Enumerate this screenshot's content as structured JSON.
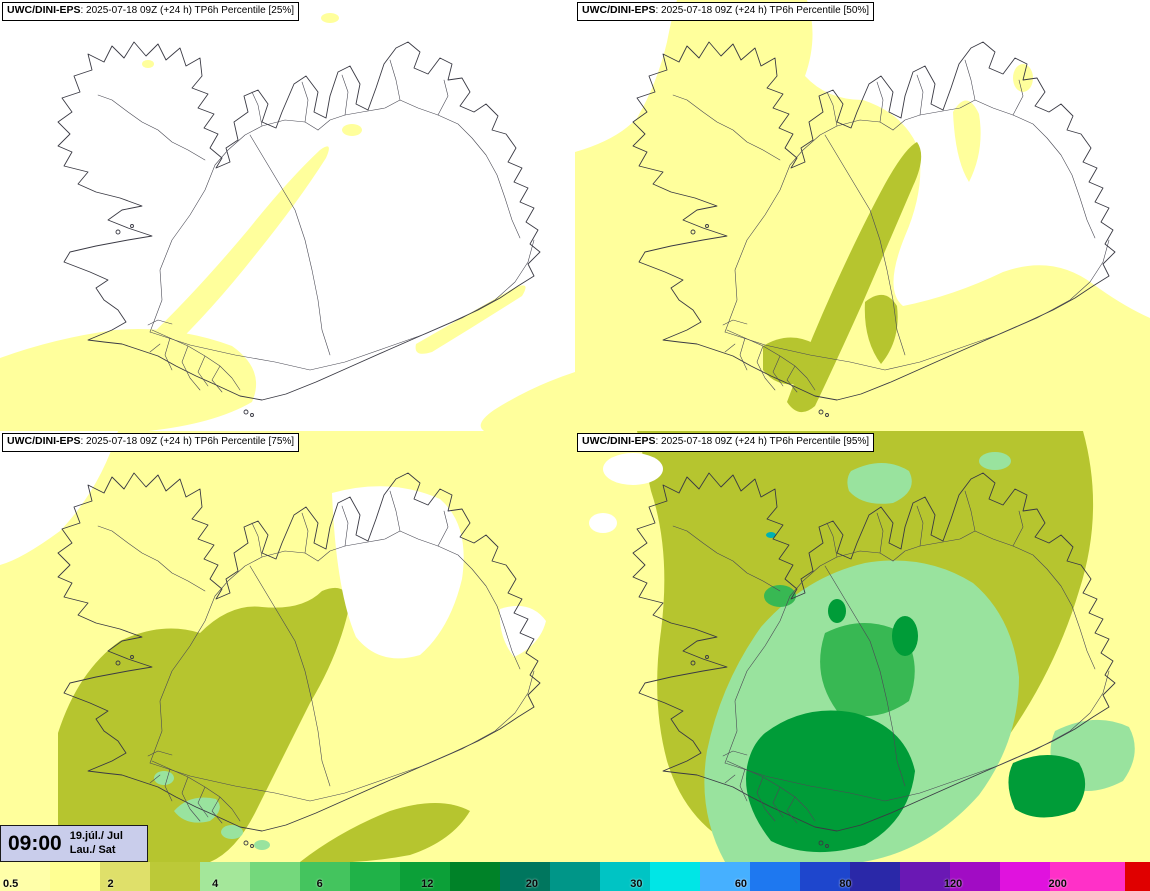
{
  "panels": [
    {
      "percentile": "25%",
      "title_bold": "UWC/DINI-EPS",
      "title_rest": ": 2025-07-18 09Z (+24 h) TP6h Percentile [25%]"
    },
    {
      "percentile": "50%",
      "title_bold": "UWC/DINI-EPS",
      "title_rest": ": 2025-07-18 09Z (+24 h) TP6h Percentile [50%]"
    },
    {
      "percentile": "75%",
      "title_bold": "UWC/DINI-EPS",
      "title_rest": ": 2025-07-18 09Z (+24 h) TP6h Percentile [75%]"
    },
    {
      "percentile": "95%",
      "title_bold": "UWC/DINI-EPS",
      "title_rest": ": 2025-07-18 09Z (+24 h) TP6h Percentile [95%]"
    }
  ],
  "time_box": {
    "time": "09:00",
    "date_line1": "19.júl./ Jul",
    "date_line2": "Lau./ Sat",
    "bg": "#c9cdeb"
  },
  "colorbar": {
    "ticks": [
      "0.5",
      "2",
      "4",
      "6",
      "12",
      "20",
      "30",
      "60",
      "80",
      "120",
      "200"
    ],
    "segments": [
      {
        "color": "#ffffa9",
        "w": 1
      },
      {
        "color": "#ffff93",
        "w": 1
      },
      {
        "color": "#dfe06a",
        "w": 1
      },
      {
        "color": "#bcc938",
        "w": 1
      },
      {
        "color": "#a4e79a",
        "w": 1
      },
      {
        "color": "#74d87c",
        "w": 1
      },
      {
        "color": "#44c45e",
        "w": 1
      },
      {
        "color": "#20b248",
        "w": 1
      },
      {
        "color": "#0ca038",
        "w": 1
      },
      {
        "color": "#008228",
        "w": 1
      },
      {
        "color": "#00765e",
        "w": 1
      },
      {
        "color": "#009688",
        "w": 1
      },
      {
        "color": "#00c4c4",
        "w": 1
      },
      {
        "color": "#00e6e6",
        "w": 1
      },
      {
        "color": "#46b0ff",
        "w": 1
      },
      {
        "color": "#1e78f0",
        "w": 1
      },
      {
        "color": "#1e46cd",
        "w": 1
      },
      {
        "color": "#2a28a8",
        "w": 1
      },
      {
        "color": "#6a18b4",
        "w": 1
      },
      {
        "color": "#a10cc4",
        "w": 1
      },
      {
        "color": "#e012de",
        "w": 1
      },
      {
        "color": "#ff30c8",
        "w": 1.5
      },
      {
        "color": "#e00000",
        "w": 0.5
      }
    ]
  },
  "palette": {
    "yellow": "#ffff9c",
    "olive": "#b6c52f",
    "light_green": "#99e39e",
    "green": "#38b853",
    "dark_green": "#009c38",
    "teal": "#00b2b2",
    "white": "#ffffff"
  }
}
